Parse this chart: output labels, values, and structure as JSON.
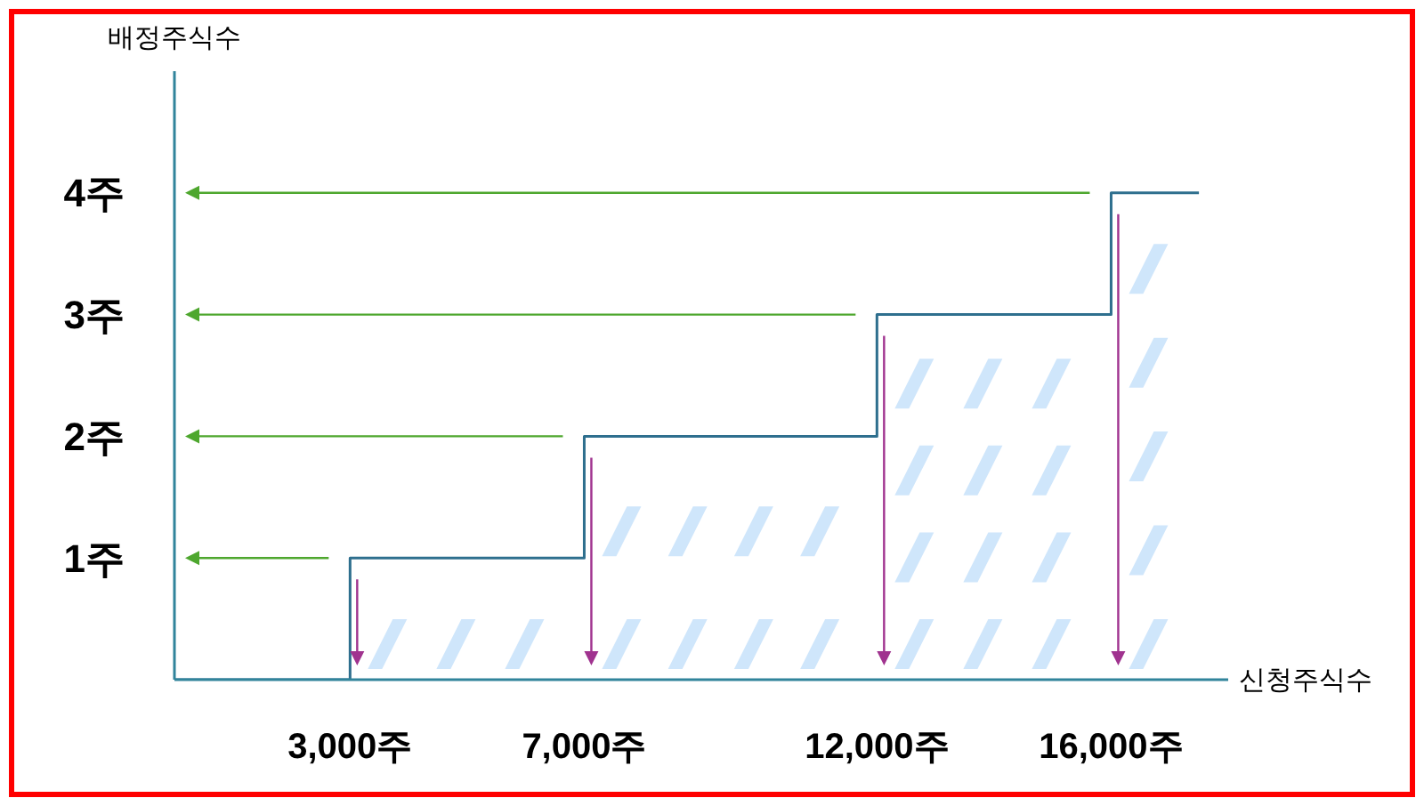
{
  "chart_data": {
    "type": "step",
    "xlabel": "신청주식수",
    "ylabel": "배정주식수",
    "x": [
      0,
      3000,
      7000,
      12000,
      16000,
      17500
    ],
    "values": [
      0,
      1,
      2,
      3,
      4,
      4
    ],
    "color": "#2e6f8e",
    "xlim": [
      0,
      18000
    ],
    "xticks": [
      {
        "value": 3000,
        "label": "3,000주"
      },
      {
        "value": 7000,
        "label": "7,000주"
      },
      {
        "value": 12000,
        "label": "12,000주"
      },
      {
        "value": 16000,
        "label": "16,000주"
      }
    ],
    "ylim": [
      0,
      5
    ],
    "yticks": [
      {
        "value": 1,
        "label": "1주"
      },
      {
        "value": 2,
        "label": "2주"
      },
      {
        "value": 3,
        "label": "3주"
      },
      {
        "value": 4,
        "label": "4주"
      }
    ],
    "grid": false,
    "legend": false,
    "marker": "none",
    "line_style": "solid"
  }
}
